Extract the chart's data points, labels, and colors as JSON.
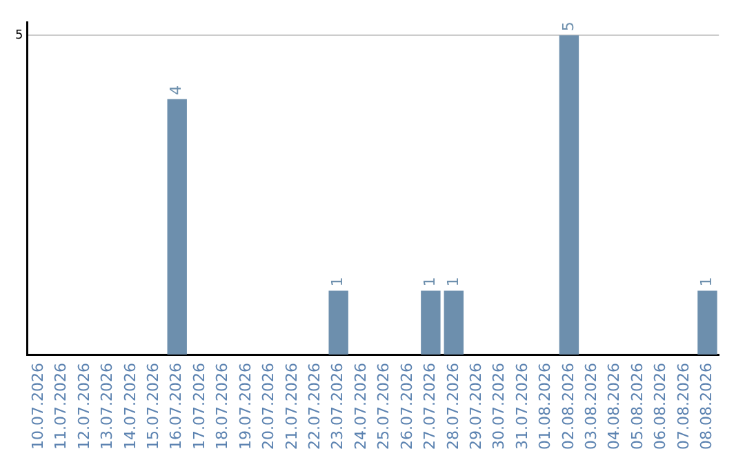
{
  "chart_data": {
    "type": "bar",
    "categories": [
      "10.07.2026",
      "11.07.2026",
      "12.07.2026",
      "13.07.2026",
      "14.07.2026",
      "15.07.2026",
      "16.07.2026",
      "17.07.2026",
      "18.07.2026",
      "19.07.2026",
      "20.07.2026",
      "21.07.2026",
      "22.07.2026",
      "23.07.2026",
      "24.07.2026",
      "25.07.2026",
      "26.07.2026",
      "27.07.2026",
      "28.07.2026",
      "29.07.2026",
      "30.07.2026",
      "31.07.2026",
      "01.08.2026",
      "02.08.2026",
      "03.08.2026",
      "04.08.2026",
      "05.08.2026",
      "06.08.2026",
      "07.08.2026",
      "08.08.2026"
    ],
    "values": [
      0,
      0,
      0,
      0,
      0,
      0,
      4,
      0,
      0,
      0,
      0,
      0,
      0,
      1,
      0,
      0,
      0,
      1,
      1,
      0,
      0,
      0,
      0,
      5,
      0,
      0,
      0,
      0,
      0,
      1
    ],
    "value_labels": [
      null,
      null,
      null,
      null,
      null,
      null,
      "4",
      null,
      null,
      null,
      null,
      null,
      null,
      "1",
      null,
      null,
      null,
      "1",
      "1",
      null,
      null,
      null,
      null,
      "5",
      null,
      null,
      null,
      null,
      null,
      "1"
    ],
    "color": "#6d8fad",
    "ylim": [
      0,
      5.2
    ],
    "yticks": [
      5
    ],
    "grid": "y",
    "legend": false
  }
}
